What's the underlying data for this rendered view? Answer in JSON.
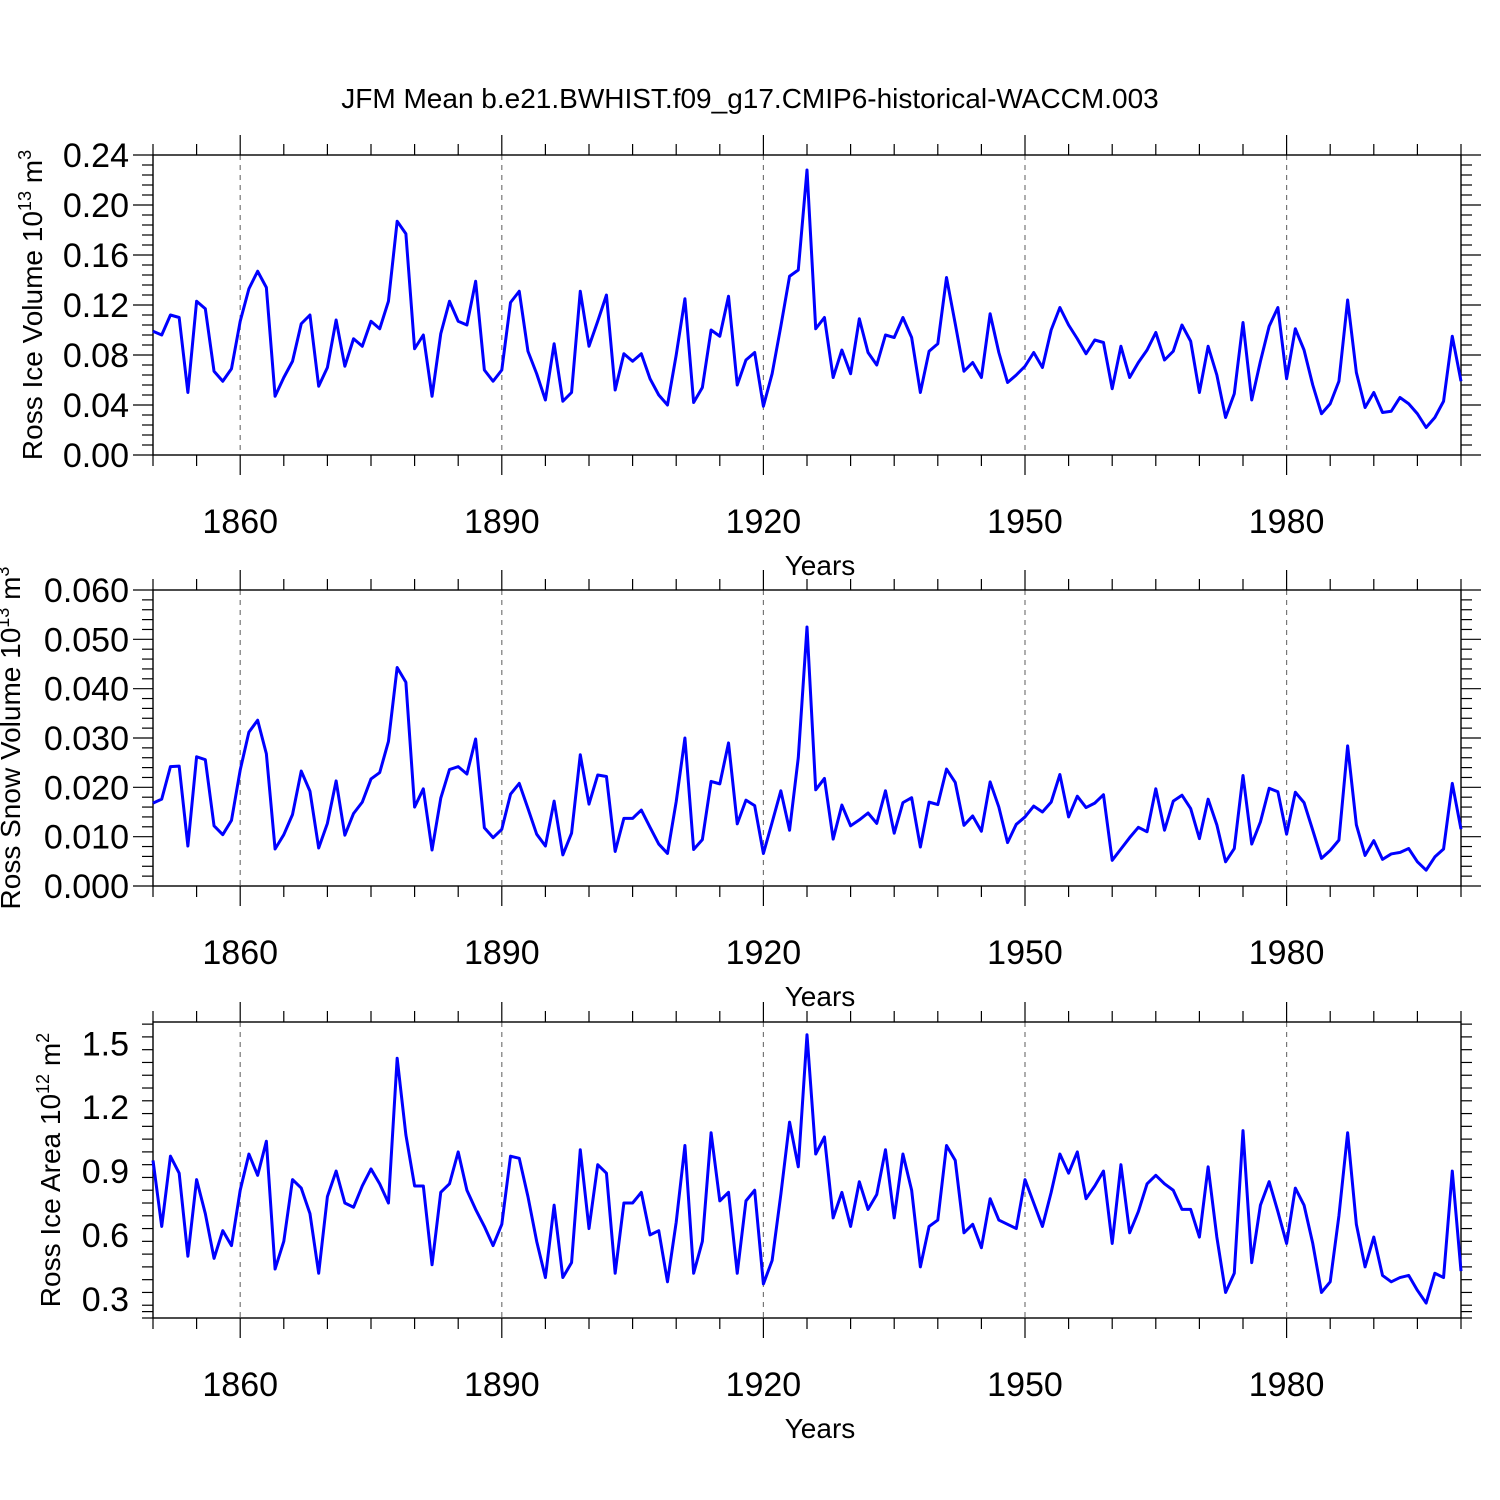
{
  "figure_title": "JFM Mean b.e21.BWHIST.f09_g17.CMIP6-historical-WACCM.003",
  "chart_data": [
    {
      "type": "line",
      "title": "JFM Mean b.e21.BWHIST.f09_g17.CMIP6-historical-WACCM.003",
      "xlabel": "Years",
      "ylabel_text": "Ross Ice Volume 10",
      "ylabel_exp": "13",
      "ylabel_unit": "m",
      "ylabel_unit_exp": "3",
      "xlim": [
        1850,
        2000
      ],
      "ylim": [
        0.0,
        0.24
      ],
      "xticks": [
        1860,
        1890,
        1920,
        1950,
        1980
      ],
      "xtick_labels": [
        "1860",
        "1890",
        "1920",
        "1950",
        "1980"
      ],
      "yticks": [
        0.0,
        0.04,
        0.08,
        0.12,
        0.16,
        0.2,
        0.24
      ],
      "ytick_labels": [
        "0.00",
        "0.04",
        "0.08",
        "0.12",
        "0.16",
        "0.20",
        "0.24"
      ],
      "grid": "vertical dashed at major x ticks",
      "series": [
        {
          "name": "Ross Ice Volume",
          "color": "#0000ff",
          "x_start": 1850,
          "values": [
            0.099,
            0.096,
            0.112,
            0.11,
            0.05,
            0.123,
            0.117,
            0.067,
            0.059,
            0.069,
            0.107,
            0.133,
            0.147,
            0.134,
            0.047,
            0.062,
            0.075,
            0.105,
            0.112,
            0.055,
            0.07,
            0.108,
            0.071,
            0.093,
            0.087,
            0.107,
            0.101,
            0.123,
            0.187,
            0.177,
            0.085,
            0.096,
            0.047,
            0.097,
            0.123,
            0.107,
            0.104,
            0.139,
            0.068,
            0.059,
            0.068,
            0.122,
            0.131,
            0.083,
            0.065,
            0.044,
            0.089,
            0.043,
            0.05,
            0.131,
            0.087,
            0.107,
            0.128,
            0.052,
            0.081,
            0.075,
            0.081,
            0.061,
            0.048,
            0.04,
            0.08,
            0.125,
            0.042,
            0.054,
            0.1,
            0.095,
            0.127,
            0.056,
            0.076,
            0.082,
            0.039,
            0.065,
            0.103,
            0.143,
            0.148,
            0.228,
            0.101,
            0.11,
            0.062,
            0.084,
            0.065,
            0.109,
            0.082,
            0.072,
            0.096,
            0.094,
            0.11,
            0.094,
            0.05,
            0.083,
            0.089,
            0.142,
            0.105,
            0.067,
            0.074,
            0.062,
            0.113,
            0.082,
            0.058,
            0.064,
            0.071,
            0.082,
            0.07,
            0.1,
            0.118,
            0.104,
            0.093,
            0.081,
            0.092,
            0.09,
            0.053,
            0.087,
            0.062,
            0.074,
            0.084,
            0.098,
            0.076,
            0.083,
            0.104,
            0.091,
            0.05,
            0.087,
            0.064,
            0.03,
            0.049,
            0.106,
            0.044,
            0.075,
            0.103,
            0.118,
            0.061,
            0.101,
            0.084,
            0.056,
            0.033,
            0.041,
            0.059,
            0.124,
            0.066,
            0.038,
            0.05,
            0.034,
            0.035,
            0.046,
            0.041,
            0.033,
            0.022,
            0.03,
            0.043,
            0.095,
            0.059
          ]
        }
      ]
    },
    {
      "type": "line",
      "xlabel": "Years",
      "ylabel_text": "Ross Snow Volume 10",
      "ylabel_exp": "13",
      "ylabel_unit": "m",
      "ylabel_unit_exp": "3",
      "xlim": [
        1850,
        2000
      ],
      "ylim": [
        0.0,
        0.06
      ],
      "xticks": [
        1860,
        1890,
        1920,
        1950,
        1980
      ],
      "xtick_labels": [
        "1860",
        "1890",
        "1920",
        "1950",
        "1980"
      ],
      "yticks": [
        0.0,
        0.01,
        0.02,
        0.03,
        0.04,
        0.05,
        0.06
      ],
      "ytick_labels": [
        "0.000",
        "0.010",
        "0.020",
        "0.030",
        "0.040",
        "0.050",
        "0.060"
      ],
      "grid": "vertical dashed at major x ticks",
      "series": [
        {
          "name": "Ross Snow Volume",
          "color": "#0000ff",
          "x_start": 1850,
          "values": [
            0.0168,
            0.0176,
            0.0242,
            0.0243,
            0.0081,
            0.0262,
            0.0256,
            0.0122,
            0.0104,
            0.0133,
            0.0235,
            0.0312,
            0.0336,
            0.0268,
            0.0075,
            0.0104,
            0.0145,
            0.0233,
            0.0192,
            0.0077,
            0.0127,
            0.0213,
            0.0103,
            0.0147,
            0.017,
            0.0217,
            0.023,
            0.0293,
            0.0443,
            0.0413,
            0.016,
            0.0197,
            0.0073,
            0.0178,
            0.0236,
            0.0242,
            0.0227,
            0.0298,
            0.0118,
            0.0098,
            0.0115,
            0.0186,
            0.0208,
            0.0157,
            0.0105,
            0.0081,
            0.0172,
            0.0063,
            0.0107,
            0.0266,
            0.0166,
            0.0225,
            0.0222,
            0.007,
            0.0137,
            0.0137,
            0.0154,
            0.0119,
            0.0085,
            0.0066,
            0.0171,
            0.03,
            0.0074,
            0.0094,
            0.0212,
            0.0207,
            0.029,
            0.0126,
            0.0174,
            0.0163,
            0.0066,
            0.0129,
            0.0193,
            0.0113,
            0.026,
            0.0525,
            0.0195,
            0.0218,
            0.0095,
            0.0164,
            0.0122,
            0.0134,
            0.0148,
            0.0127,
            0.0193,
            0.0107,
            0.0169,
            0.0179,
            0.0079,
            0.017,
            0.0165,
            0.0237,
            0.021,
            0.0123,
            0.0142,
            0.0111,
            0.0211,
            0.016,
            0.0088,
            0.0125,
            0.014,
            0.0162,
            0.015,
            0.017,
            0.0226,
            0.014,
            0.0182,
            0.0159,
            0.0168,
            0.0185,
            0.0052,
            0.0075,
            0.0098,
            0.0119,
            0.011,
            0.0197,
            0.0113,
            0.0172,
            0.0184,
            0.0157,
            0.0096,
            0.0176,
            0.0124,
            0.0049,
            0.0076,
            0.0224,
            0.0085,
            0.013,
            0.0198,
            0.0191,
            0.0105,
            0.019,
            0.0169,
            0.0113,
            0.0056,
            0.0072,
            0.0093,
            0.0284,
            0.0124,
            0.0062,
            0.0092,
            0.0054,
            0.0065,
            0.0068,
            0.0076,
            0.0049,
            0.0032,
            0.0059,
            0.0075,
            0.0208,
            0.0115
          ]
        }
      ]
    },
    {
      "type": "line",
      "xlabel": "Years",
      "ylabel_text": "Ross Ice Area 10",
      "ylabel_exp": "12",
      "ylabel_unit": "m",
      "ylabel_unit_exp": "2",
      "xlim": [
        1850,
        2000
      ],
      "ylim": [
        0.21,
        1.6
      ],
      "xticks": [
        1860,
        1890,
        1920,
        1950,
        1980
      ],
      "xtick_labels": [
        "1860",
        "1890",
        "1920",
        "1950",
        "1980"
      ],
      "yticks": [
        0.3,
        0.6,
        0.9,
        1.2,
        1.5
      ],
      "ytick_labels": [
        "0.3",
        "0.6",
        "0.9",
        "1.2",
        "1.5"
      ],
      "grid": "vertical dashed at major x ticks",
      "series": [
        {
          "name": "Ross Ice Area",
          "color": "#0000ff",
          "x_start": 1850,
          "values": [
            0.95,
            0.64,
            0.97,
            0.89,
            0.5,
            0.86,
            0.7,
            0.49,
            0.62,
            0.55,
            0.81,
            0.98,
            0.88,
            1.04,
            0.44,
            0.57,
            0.86,
            0.82,
            0.7,
            0.42,
            0.78,
            0.9,
            0.75,
            0.73,
            0.83,
            0.91,
            0.84,
            0.75,
            1.43,
            1.07,
            0.83,
            0.83,
            0.46,
            0.8,
            0.84,
            0.99,
            0.81,
            0.72,
            0.64,
            0.55,
            0.65,
            0.97,
            0.96,
            0.78,
            0.57,
            0.4,
            0.74,
            0.4,
            0.47,
            1.0,
            0.63,
            0.93,
            0.89,
            0.42,
            0.75,
            0.75,
            0.8,
            0.6,
            0.62,
            0.38,
            0.66,
            1.02,
            0.42,
            0.57,
            1.08,
            0.76,
            0.8,
            0.42,
            0.76,
            0.81,
            0.37,
            0.48,
            0.79,
            1.13,
            0.92,
            1.54,
            0.98,
            1.06,
            0.68,
            0.8,
            0.64,
            0.85,
            0.72,
            0.79,
            1.0,
            0.68,
            0.98,
            0.81,
            0.45,
            0.64,
            0.67,
            1.02,
            0.95,
            0.61,
            0.65,
            0.54,
            0.77,
            0.67,
            0.65,
            0.63,
            0.86,
            0.75,
            0.64,
            0.8,
            0.98,
            0.89,
            0.99,
            0.77,
            0.83,
            0.9,
            0.56,
            0.93,
            0.61,
            0.71,
            0.84,
            0.88,
            0.84,
            0.81,
            0.72,
            0.72,
            0.59,
            0.92,
            0.59,
            0.33,
            0.42,
            1.09,
            0.47,
            0.74,
            0.85,
            0.71,
            0.56,
            0.82,
            0.74,
            0.56,
            0.33,
            0.38,
            0.69,
            1.08,
            0.65,
            0.45,
            0.59,
            0.41,
            0.38,
            0.4,
            0.41,
            0.34,
            0.28,
            0.42,
            0.4,
            0.9,
            0.43
          ]
        }
      ]
    }
  ]
}
